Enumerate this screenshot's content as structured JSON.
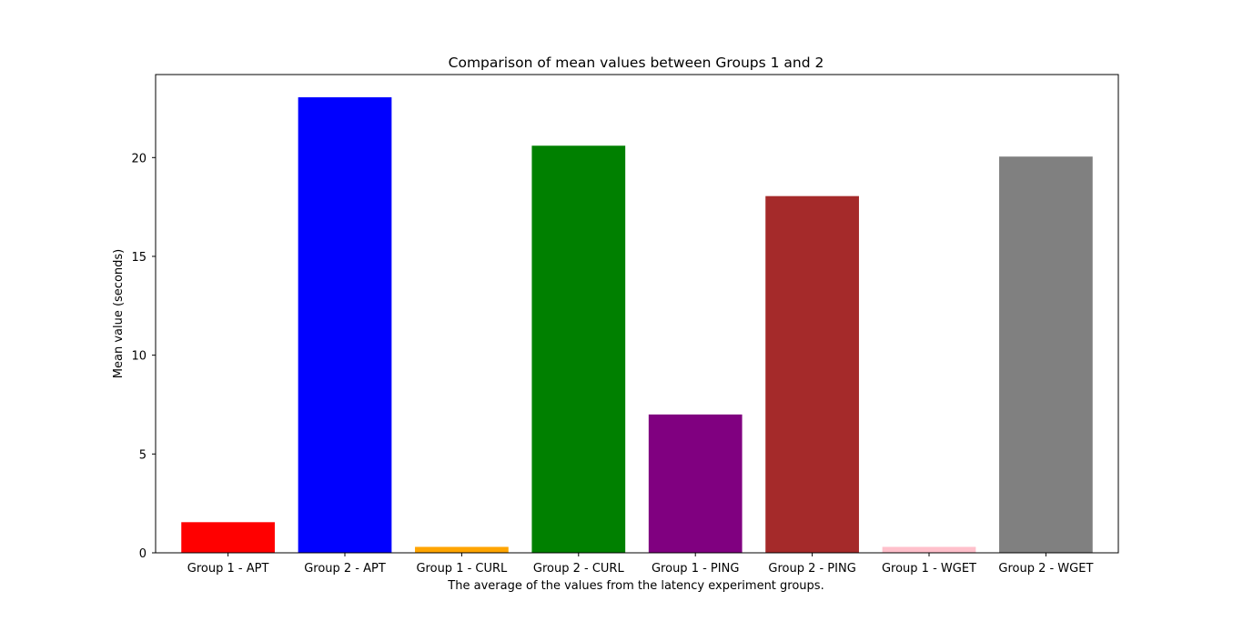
{
  "chart_data": {
    "type": "bar",
    "title": "Comparison of mean values between Groups 1 and 2",
    "xlabel": "The average of the values from the latency experiment groups.",
    "ylabel": "Mean value (seconds)",
    "ylim": [
      0,
      24.2
    ],
    "yticks": [
      0,
      5,
      10,
      15,
      20
    ],
    "grid": false,
    "categories": [
      "Group 1 - APT",
      "Group 2 - APT",
      "Group 1 - CURL",
      "Group 2 - CURL",
      "Group 1 - PING",
      "Group 2 - PING",
      "Group 1 - WGET",
      "Group 2 - WGET"
    ],
    "values": [
      1.55,
      23.05,
      0.3,
      20.6,
      7.0,
      18.05,
      0.3,
      20.05
    ],
    "colors": [
      "#ff0000",
      "#0000ff",
      "#ffa500",
      "#008000",
      "#800080",
      "#a52a2a",
      "#ffc0cb",
      "#808080"
    ]
  }
}
